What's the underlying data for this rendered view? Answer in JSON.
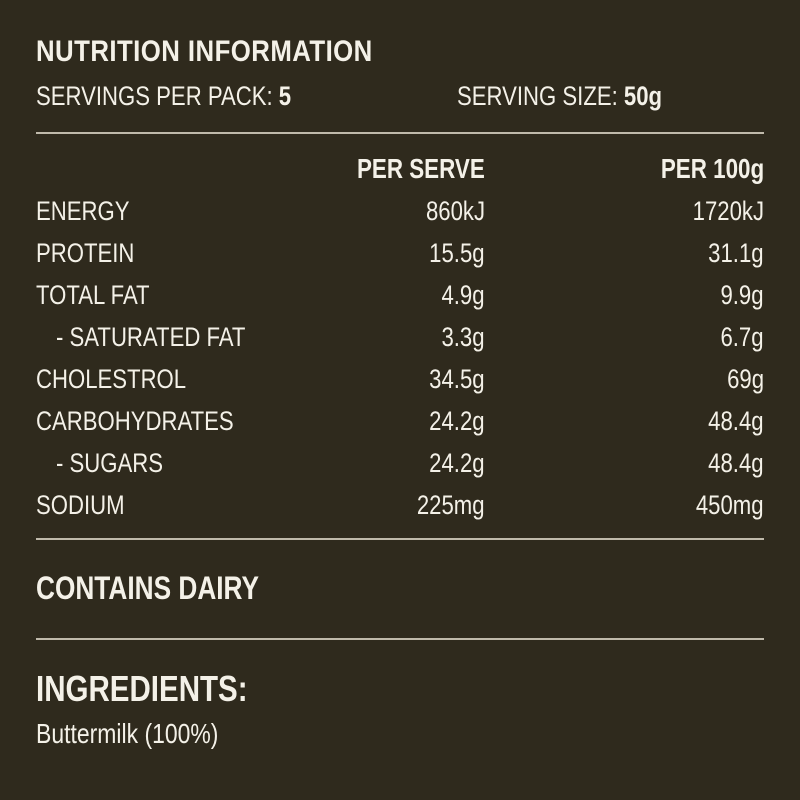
{
  "header": {
    "title": "NUTRITION INFORMATION",
    "servings_label": "SERVINGS PER PACK:",
    "servings_value": "5",
    "size_label": "SERVING SIZE:",
    "size_value": "50g"
  },
  "table": {
    "col_per_serve": "PER SERVE",
    "col_per_100g": "PER 100g",
    "rows": [
      {
        "label": "ENERGY",
        "per_serve": "860kJ",
        "per_100g": "1720kJ"
      },
      {
        "label": "PROTEIN",
        "per_serve": "15.5g",
        "per_100g": "31.1g"
      },
      {
        "label": "TOTAL FAT",
        "per_serve": "4.9g",
        "per_100g": "9.9g"
      },
      {
        "label": "- SATURATED FAT",
        "per_serve": "3.3g",
        "per_100g": "6.7g"
      },
      {
        "label": "CHOLESTROL",
        "per_serve": "34.5g",
        "per_100g": "69g"
      },
      {
        "label": "CARBOHYDRATES",
        "per_serve": "24.2g",
        "per_100g": "48.4g"
      },
      {
        "label": "- SUGARS",
        "per_serve": "24.2g",
        "per_100g": "48.4g"
      },
      {
        "label": "SODIUM",
        "per_serve": "225mg",
        "per_100g": "450mg"
      }
    ]
  },
  "allergen": {
    "text": "CONTAINS DAIRY"
  },
  "ingredients": {
    "heading": "INGREDIENTS:",
    "text": "Buttermilk (100%)"
  }
}
